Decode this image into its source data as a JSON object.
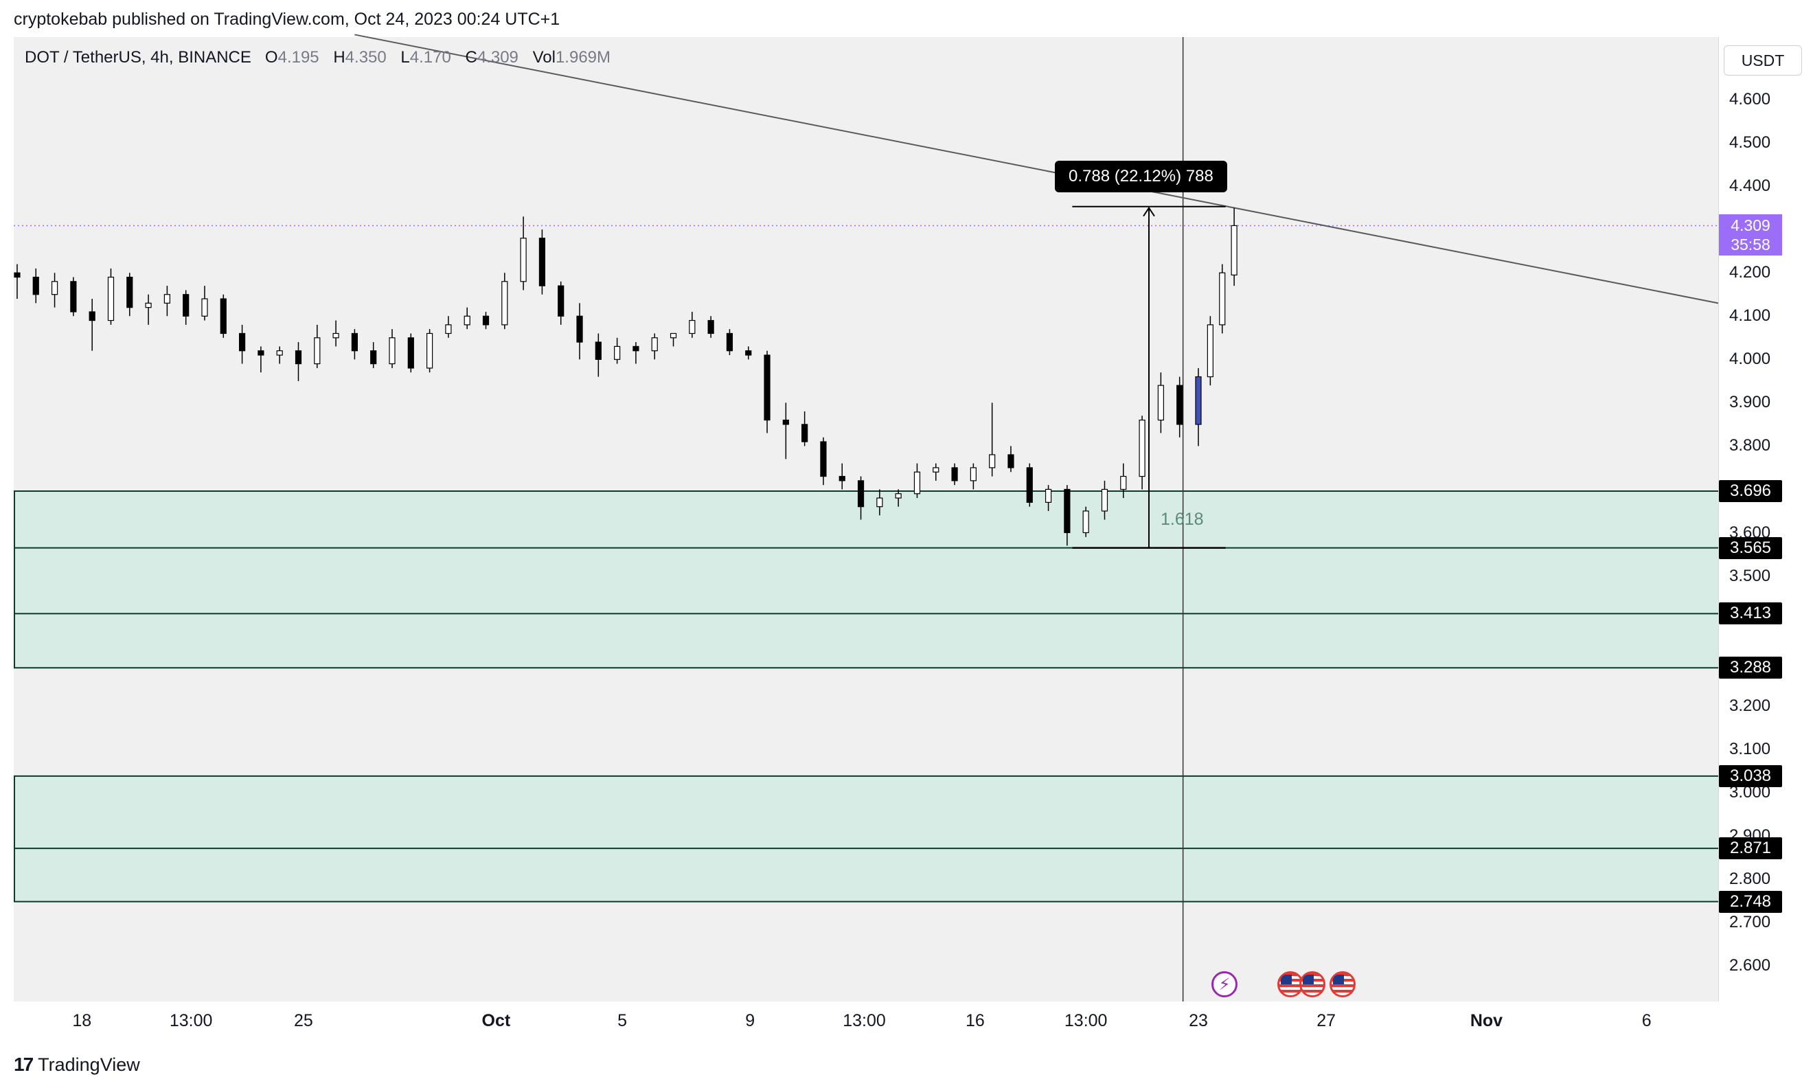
{
  "header": {
    "publisher": "cryptokebab published on TradingView.com, Oct 24, 2023 00:24 UTC+1"
  },
  "legend": {
    "symbol": "DOT / TetherUS, 4h, BINANCE",
    "open_label": "O",
    "open": "4.195",
    "high_label": "H",
    "high": "4.350",
    "low_label": "L",
    "low": "4.170",
    "close_label": "C",
    "close": "4.309",
    "vol_label": "Vol",
    "vol": "1.969M"
  },
  "price_axis": {
    "currency": "USDT",
    "last_price": "4.309",
    "countdown": "35:58"
  },
  "measure": {
    "label": "0.788 (22.12%) 788",
    "fib": "1.618"
  },
  "footer": {
    "brand": "TradingView",
    "mark": "17"
  },
  "colors": {
    "zone_fill": "#d6ece5",
    "zone_border": "#0b3b2e",
    "candle_up": "#ffffff",
    "candle_down": "#000000",
    "candle_blue": "#3f51b5",
    "trendline": "#5a5a5a",
    "last_price_line": "#9c6ef7",
    "chart_bg": "#f0f0f0"
  },
  "chart_data": {
    "type": "candlestick",
    "title": "DOT / TetherUS, 4h, BINANCE",
    "ylim": [
      2.5,
      4.7
    ],
    "y_ticks": [
      "4.600",
      "4.500",
      "4.400",
      "4.200",
      "4.100",
      "4.000",
      "3.900",
      "3.800",
      "3.600",
      "3.500",
      "3.200",
      "3.100",
      "3.000",
      "2.900",
      "2.800",
      "2.700",
      "2.600"
    ],
    "y_tick_values": [
      4.6,
      4.5,
      4.4,
      4.2,
      4.1,
      4.0,
      3.9,
      3.8,
      3.6,
      3.5,
      3.2,
      3.1,
      3.0,
      2.9,
      2.8,
      2.7,
      2.6
    ],
    "x_ticks": [
      {
        "label": "18",
        "t": 0.04,
        "bold": false
      },
      {
        "label": "13:00",
        "t": 0.104,
        "bold": false
      },
      {
        "label": "25",
        "t": 0.17,
        "bold": false
      },
      {
        "label": "Oct",
        "t": 0.283,
        "bold": true
      },
      {
        "label": "5",
        "t": 0.357,
        "bold": false
      },
      {
        "label": "9",
        "t": 0.432,
        "bold": false
      },
      {
        "label": "13:00",
        "t": 0.499,
        "bold": false
      },
      {
        "label": "16",
        "t": 0.564,
        "bold": false
      },
      {
        "label": "13:00",
        "t": 0.629,
        "bold": false
      },
      {
        "label": "23",
        "t": 0.695,
        "bold": false
      },
      {
        "label": "27",
        "t": 0.77,
        "bold": false
      },
      {
        "label": "Nov",
        "t": 0.864,
        "bold": true
      },
      {
        "label": "6",
        "t": 0.958,
        "bold": false
      }
    ],
    "levels": [
      {
        "label": "3.696",
        "value": 3.696
      },
      {
        "label": "3.565",
        "value": 3.565
      },
      {
        "label": "3.413",
        "value": 3.413
      },
      {
        "label": "3.288",
        "value": 3.288
      },
      {
        "label": "3.038",
        "value": 3.038
      },
      {
        "label": "2.871",
        "value": 2.871
      },
      {
        "label": "2.748",
        "value": 2.748
      }
    ],
    "zones": [
      {
        "from": 3.288,
        "to": 3.696
      },
      {
        "from": 2.748,
        "to": 3.038
      }
    ],
    "trendline": [
      {
        "t": 0.2,
        "price": 4.75
      },
      {
        "t": 1.0,
        "price": 4.13
      }
    ],
    "last_price": 4.309,
    "vertical_marker_t": 0.686,
    "measure": {
      "t_start": 0.621,
      "t_end": 0.711,
      "low": 3.565,
      "high": 4.353,
      "change": 0.788,
      "percent": 22.12
    },
    "candles": [
      {
        "t": 0.002,
        "o": 4.2,
        "h": 4.22,
        "l": 4.14,
        "c": 4.19
      },
      {
        "t": 0.013,
        "o": 4.19,
        "h": 4.21,
        "l": 4.13,
        "c": 4.15
      },
      {
        "t": 0.024,
        "o": 4.15,
        "h": 4.2,
        "l": 4.12,
        "c": 4.18
      },
      {
        "t": 0.035,
        "o": 4.18,
        "h": 4.19,
        "l": 4.1,
        "c": 4.11
      },
      {
        "t": 0.046,
        "o": 4.11,
        "h": 4.14,
        "l": 4.02,
        "c": 4.09
      },
      {
        "t": 0.057,
        "o": 4.09,
        "h": 4.21,
        "l": 4.08,
        "c": 4.19
      },
      {
        "t": 0.068,
        "o": 4.19,
        "h": 4.2,
        "l": 4.1,
        "c": 4.12
      },
      {
        "t": 0.079,
        "o": 4.12,
        "h": 4.15,
        "l": 4.08,
        "c": 4.13
      },
      {
        "t": 0.09,
        "o": 4.13,
        "h": 4.17,
        "l": 4.1,
        "c": 4.15
      },
      {
        "t": 0.101,
        "o": 4.15,
        "h": 4.16,
        "l": 4.08,
        "c": 4.1
      },
      {
        "t": 0.112,
        "o": 4.1,
        "h": 4.17,
        "l": 4.09,
        "c": 4.14
      },
      {
        "t": 0.123,
        "o": 4.14,
        "h": 4.15,
        "l": 4.05,
        "c": 4.06
      },
      {
        "t": 0.134,
        "o": 4.06,
        "h": 4.08,
        "l": 3.99,
        "c": 4.02
      },
      {
        "t": 0.145,
        "o": 4.02,
        "h": 4.03,
        "l": 3.97,
        "c": 4.01
      },
      {
        "t": 0.156,
        "o": 4.01,
        "h": 4.03,
        "l": 3.99,
        "c": 4.02
      },
      {
        "t": 0.167,
        "o": 4.02,
        "h": 4.04,
        "l": 3.95,
        "c": 3.99
      },
      {
        "t": 0.178,
        "o": 3.99,
        "h": 4.08,
        "l": 3.98,
        "c": 4.05
      },
      {
        "t": 0.189,
        "o": 4.05,
        "h": 4.09,
        "l": 4.03,
        "c": 4.06
      },
      {
        "t": 0.2,
        "o": 4.06,
        "h": 4.07,
        "l": 4.0,
        "c": 4.02
      },
      {
        "t": 0.211,
        "o": 4.02,
        "h": 4.04,
        "l": 3.98,
        "c": 3.99
      },
      {
        "t": 0.222,
        "o": 3.99,
        "h": 4.07,
        "l": 3.98,
        "c": 4.05
      },
      {
        "t": 0.233,
        "o": 4.05,
        "h": 4.06,
        "l": 3.97,
        "c": 3.98
      },
      {
        "t": 0.244,
        "o": 3.98,
        "h": 4.07,
        "l": 3.97,
        "c": 4.06
      },
      {
        "t": 0.255,
        "o": 4.06,
        "h": 4.1,
        "l": 4.05,
        "c": 4.08
      },
      {
        "t": 0.266,
        "o": 4.08,
        "h": 4.12,
        "l": 4.07,
        "c": 4.1
      },
      {
        "t": 0.277,
        "o": 4.1,
        "h": 4.11,
        "l": 4.07,
        "c": 4.08
      },
      {
        "t": 0.288,
        "o": 4.08,
        "h": 4.2,
        "l": 4.07,
        "c": 4.18
      },
      {
        "t": 0.299,
        "o": 4.18,
        "h": 4.33,
        "l": 4.16,
        "c": 4.28
      },
      {
        "t": 0.31,
        "o": 4.28,
        "h": 4.3,
        "l": 4.15,
        "c": 4.17
      },
      {
        "t": 0.321,
        "o": 4.17,
        "h": 4.18,
        "l": 4.08,
        "c": 4.1
      },
      {
        "t": 0.332,
        "o": 4.1,
        "h": 4.13,
        "l": 4.0,
        "c": 4.04
      },
      {
        "t": 0.343,
        "o": 4.04,
        "h": 4.06,
        "l": 3.96,
        "c": 4.0
      },
      {
        "t": 0.354,
        "o": 4.0,
        "h": 4.05,
        "l": 3.99,
        "c": 4.03
      },
      {
        "t": 0.365,
        "o": 4.03,
        "h": 4.04,
        "l": 3.99,
        "c": 4.02
      },
      {
        "t": 0.376,
        "o": 4.02,
        "h": 4.06,
        "l": 4.0,
        "c": 4.05
      },
      {
        "t": 0.387,
        "o": 4.05,
        "h": 4.06,
        "l": 4.03,
        "c": 4.06
      },
      {
        "t": 0.398,
        "o": 4.06,
        "h": 4.11,
        "l": 4.05,
        "c": 4.09
      },
      {
        "t": 0.409,
        "o": 4.09,
        "h": 4.1,
        "l": 4.05,
        "c": 4.06
      },
      {
        "t": 0.42,
        "o": 4.06,
        "h": 4.07,
        "l": 4.01,
        "c": 4.02
      },
      {
        "t": 0.431,
        "o": 4.02,
        "h": 4.03,
        "l": 4.0,
        "c": 4.01
      },
      {
        "t": 0.442,
        "o": 4.01,
        "h": 4.02,
        "l": 3.83,
        "c": 3.86
      },
      {
        "t": 0.453,
        "o": 3.86,
        "h": 3.9,
        "l": 3.77,
        "c": 3.85
      },
      {
        "t": 0.464,
        "o": 3.85,
        "h": 3.88,
        "l": 3.8,
        "c": 3.81
      },
      {
        "t": 0.475,
        "o": 3.81,
        "h": 3.82,
        "l": 3.71,
        "c": 3.73
      },
      {
        "t": 0.486,
        "o": 3.73,
        "h": 3.76,
        "l": 3.7,
        "c": 3.72
      },
      {
        "t": 0.497,
        "o": 3.72,
        "h": 3.73,
        "l": 3.63,
        "c": 3.66
      },
      {
        "t": 0.508,
        "o": 3.66,
        "h": 3.7,
        "l": 3.64,
        "c": 3.68
      },
      {
        "t": 0.519,
        "o": 3.68,
        "h": 3.7,
        "l": 3.66,
        "c": 3.69
      },
      {
        "t": 0.53,
        "o": 3.69,
        "h": 3.76,
        "l": 3.68,
        "c": 3.74
      },
      {
        "t": 0.541,
        "o": 3.74,
        "h": 3.76,
        "l": 3.72,
        "c": 3.75
      },
      {
        "t": 0.552,
        "o": 3.75,
        "h": 3.76,
        "l": 3.71,
        "c": 3.72
      },
      {
        "t": 0.563,
        "o": 3.72,
        "h": 3.76,
        "l": 3.7,
        "c": 3.75
      },
      {
        "t": 0.574,
        "o": 3.75,
        "h": 3.9,
        "l": 3.73,
        "c": 3.78
      },
      {
        "t": 0.585,
        "o": 3.78,
        "h": 3.8,
        "l": 3.74,
        "c": 3.75
      },
      {
        "t": 0.596,
        "o": 3.75,
        "h": 3.76,
        "l": 3.66,
        "c": 3.67
      },
      {
        "t": 0.607,
        "o": 3.67,
        "h": 3.71,
        "l": 3.65,
        "c": 3.7
      },
      {
        "t": 0.618,
        "o": 3.7,
        "h": 3.71,
        "l": 3.57,
        "c": 3.6
      },
      {
        "t": 0.629,
        "o": 3.6,
        "h": 3.66,
        "l": 3.59,
        "c": 3.65
      },
      {
        "t": 0.64,
        "o": 3.65,
        "h": 3.72,
        "l": 3.63,
        "c": 3.7
      },
      {
        "t": 0.651,
        "o": 3.7,
        "h": 3.76,
        "l": 3.68,
        "c": 3.73
      },
      {
        "t": 0.662,
        "o": 3.73,
        "h": 3.87,
        "l": 3.7,
        "c": 3.86
      },
      {
        "t": 0.673,
        "o": 3.86,
        "h": 3.97,
        "l": 3.83,
        "c": 3.94
      },
      {
        "t": 0.684,
        "o": 3.94,
        "h": 3.96,
        "l": 3.82,
        "c": 3.85
      },
      {
        "t": 0.695,
        "o": 3.85,
        "h": 3.98,
        "l": 3.8,
        "c": 3.96
      },
      {
        "t": 0.702,
        "o": 3.96,
        "h": 4.1,
        "l": 3.94,
        "c": 4.08
      },
      {
        "t": 0.709,
        "o": 4.08,
        "h": 4.22,
        "l": 4.06,
        "c": 4.2
      },
      {
        "t": 0.716,
        "o": 4.195,
        "h": 4.35,
        "l": 4.17,
        "c": 4.309
      }
    ]
  }
}
